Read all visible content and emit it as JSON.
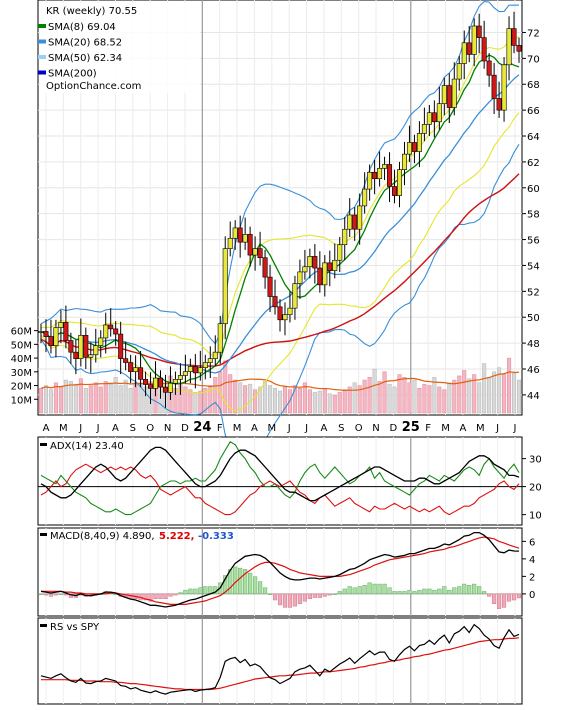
{
  "chart_data": {
    "type": "line",
    "symbol": "KR",
    "interval": "weekly",
    "main_panel": {
      "title": "KR (weekly) 70.55",
      "legend": [
        {
          "label": "SMA(8) 69.04",
          "color": "#008000"
        },
        {
          "label": "SMA(20) 68.52",
          "color": "#3a8fd8"
        },
        {
          "label": "SMA(50) 62.34",
          "color": "#9dd0f0"
        },
        {
          "label": "SMA(200)",
          "color": "#0000c8"
        }
      ],
      "watermark": "OptionChance.com",
      "price_ticks": [
        44,
        46,
        48,
        50,
        52,
        54,
        56,
        58,
        60,
        62,
        64,
        66,
        68,
        70,
        72
      ],
      "price_range": [
        42.6,
        74.2
      ],
      "volume_ticks": [
        "60M",
        "50M",
        "40M",
        "30M",
        "20M",
        "10M"
      ],
      "volume_tick_values": [
        60,
        50,
        40,
        30,
        20,
        10
      ],
      "volume_range": [
        0,
        67
      ],
      "x_labels": [
        "A",
        "M",
        "J",
        "J",
        "A",
        "S",
        "O",
        "N",
        "D",
        "24",
        "F",
        "M",
        "A",
        "M",
        "J",
        "J",
        "A",
        "S",
        "O",
        "N",
        "D",
        "25",
        "F",
        "M",
        "A",
        "M",
        "J",
        "J"
      ],
      "close": [
        48.9,
        48.5,
        47.8,
        49.2,
        49.6,
        48.2,
        47.3,
        46.8,
        48.6,
        46.9,
        47.1,
        47.8,
        48.4,
        49.4,
        49.1,
        48.7,
        46.8,
        46.5,
        45.8,
        46.1,
        45.2,
        44.8,
        44.5,
        45.3,
        44.6,
        44.2,
        44.9,
        45.2,
        45.5,
        45.8,
        46.2,
        45.7,
        46.1,
        46.5,
        46.8,
        47.3,
        49.5,
        55.3,
        56.1,
        56.9,
        55.8,
        56.4,
        54.8,
        55.3,
        54.6,
        53.1,
        51.6,
        50.8,
        49.8,
        50.2,
        50.7,
        52.6,
        53.5,
        53.9,
        54.7,
        53.8,
        52.5,
        54.2,
        53.6,
        54.4,
        55.6,
        56.8,
        57.9,
        56.8,
        58.6,
        59.9,
        61.2,
        60.7,
        61.5,
        61.8,
        60.1,
        59.4,
        61.4,
        62.6,
        63.5,
        62.8,
        64.2,
        64.9,
        65.8,
        65.1,
        66.5,
        67.9,
        66.2,
        68.4,
        69.6,
        71.2,
        70.3,
        72.5,
        71.6,
        69.8,
        68.7,
        66.9,
        66.0,
        69.5,
        72.3,
        71.0,
        70.55
      ],
      "sma8_last": 69.04,
      "sma20_last": 68.52,
      "sma50_last": 62.34,
      "volume_m": [
        18,
        20,
        17,
        22,
        19,
        24,
        23,
        21,
        25,
        18,
        20,
        22,
        19,
        23,
        21,
        26,
        20,
        24,
        18,
        22,
        21,
        19,
        23,
        20,
        25,
        22,
        27,
        18,
        21,
        19,
        17,
        15,
        16,
        18,
        20,
        26,
        30,
        38,
        28,
        24,
        22,
        20,
        21,
        17,
        19,
        23,
        20,
        18,
        16,
        19,
        17,
        20,
        18,
        22,
        17,
        15,
        16,
        18,
        14,
        13,
        15,
        17,
        19,
        22,
        20,
        24,
        26,
        32,
        23,
        30,
        21,
        19,
        28,
        26,
        22,
        24,
        18,
        21,
        20,
        26,
        19,
        17,
        22,
        24,
        27,
        31,
        25,
        28,
        22,
        36,
        26,
        30,
        33,
        28,
        40,
        29,
        24
      ],
      "volume_colors_up": [
        1,
        0,
        0,
        1,
        1,
        0,
        0,
        0,
        1,
        0,
        1,
        1,
        1,
        1,
        0,
        0,
        0,
        0,
        0,
        1,
        0,
        0,
        0,
        1,
        0,
        0,
        1,
        1,
        1,
        1,
        1,
        0,
        1,
        1,
        1,
        1,
        1,
        1,
        1,
        1,
        0,
        1,
        0,
        1,
        0,
        0,
        0,
        0,
        0,
        1,
        1,
        1,
        1,
        1,
        1,
        0,
        0,
        1,
        0,
        1,
        1,
        1,
        1,
        0,
        1,
        1,
        1,
        0,
        1,
        1,
        0,
        0,
        1,
        1,
        1,
        0,
        1,
        1,
        1,
        0,
        1,
        1,
        0,
        1,
        1,
        1,
        0,
        1,
        0,
        0,
        0,
        0,
        0,
        1,
        1,
        0,
        0
      ]
    },
    "adx_panel": {
      "title": "ADX(14) 23.40",
      "ticks": [
        10,
        20,
        30
      ],
      "range": [
        7,
        37
      ],
      "reference_level": 20,
      "adx": [
        21,
        20,
        18,
        17,
        16,
        16,
        17,
        19,
        21,
        23,
        25,
        27,
        28,
        27,
        25,
        23,
        22,
        23,
        25,
        27,
        29,
        31,
        33,
        34,
        34,
        33,
        31,
        29,
        27,
        25,
        23,
        21,
        20,
        20,
        21,
        22,
        24,
        27,
        30,
        32,
        33,
        33,
        32,
        31,
        29,
        27,
        25,
        23,
        21,
        19,
        18,
        18,
        17,
        16,
        15,
        15,
        16,
        17,
        18,
        19,
        20,
        21,
        22,
        23,
        24,
        25,
        26,
        27,
        27,
        26,
        25,
        24,
        23,
        22,
        22,
        22,
        23,
        23,
        22,
        21,
        21,
        22,
        23,
        24,
        25,
        27,
        29,
        30,
        31,
        31,
        30,
        28,
        27,
        26,
        24,
        24,
        23.4
      ],
      "plus_di": [
        24,
        23,
        22,
        21,
        24,
        22,
        20,
        18,
        17,
        16,
        14,
        13,
        12,
        11,
        11,
        12,
        11,
        10,
        10,
        11,
        12,
        13,
        14,
        17,
        20,
        21,
        22,
        22,
        21,
        22,
        22,
        23,
        22,
        22,
        24,
        26,
        30,
        33,
        36,
        35,
        32,
        30,
        27,
        25,
        22,
        20,
        20,
        21,
        19,
        17,
        16,
        18,
        22,
        25,
        27,
        28,
        25,
        23,
        25,
        27,
        25,
        23,
        21,
        22,
        24,
        25,
        27,
        23,
        25,
        22,
        21,
        20,
        19,
        18,
        17,
        19,
        21,
        22,
        24,
        23,
        22,
        24,
        23,
        22,
        24,
        26,
        27,
        26,
        24,
        28,
        30,
        27,
        25,
        23,
        26,
        28,
        25
      ],
      "minus_di": [
        17,
        18,
        20,
        22,
        20,
        21,
        24,
        26,
        27,
        28,
        27,
        26,
        25,
        26,
        27,
        26,
        27,
        26,
        27,
        26,
        24,
        23,
        24,
        22,
        19,
        18,
        17,
        18,
        19,
        20,
        18,
        16,
        16,
        14,
        13,
        12,
        11,
        10,
        10,
        11,
        13,
        15,
        17,
        18,
        20,
        21,
        22,
        21,
        20,
        21,
        22,
        20,
        18,
        17,
        15,
        14,
        16,
        17,
        15,
        13,
        14,
        15,
        16,
        14,
        13,
        12,
        11,
        13,
        12,
        12,
        13,
        14,
        13,
        12,
        13,
        12,
        11,
        12,
        11,
        12,
        13,
        11,
        10,
        11,
        12,
        13,
        13,
        14,
        16,
        17,
        18,
        19,
        21,
        22,
        20,
        19,
        21
      ]
    },
    "macd_panel": {
      "title": "MACD(8,40,9) 4.890,",
      "signal_label": "5.222,",
      "hist_label": "-0.333",
      "ticks": [
        0,
        2,
        4,
        6
      ],
      "range": [
        -2.3,
        7.3
      ],
      "macd": [
        0.3,
        0.2,
        0.1,
        0.2,
        0.3,
        0.1,
        -0.1,
        -0.2,
        0,
        -0.2,
        -0.2,
        -0.1,
        0,
        0.2,
        0.2,
        0.1,
        -0.2,
        -0.4,
        -0.6,
        -0.7,
        -0.9,
        -1.1,
        -1.3,
        -1.3,
        -1.4,
        -1.5,
        -1.4,
        -1.3,
        -1.1,
        -0.9,
        -0.7,
        -0.6,
        -0.4,
        -0.2,
        0,
        0.2,
        0.7,
        1.7,
        2.7,
        3.5,
        3.9,
        4.3,
        4.4,
        4.5,
        4.4,
        4.1,
        3.6,
        3.0,
        2.4,
        2.0,
        1.7,
        1.6,
        1.6,
        1.7,
        1.8,
        1.8,
        1.7,
        1.8,
        1.9,
        2.0,
        2.2,
        2.5,
        2.8,
        2.9,
        3.2,
        3.5,
        3.9,
        4.1,
        4.3,
        4.5,
        4.4,
        4.2,
        4.3,
        4.4,
        4.6,
        4.6,
        4.8,
        5.0,
        5.2,
        5.2,
        5.4,
        5.7,
        5.6,
        5.9,
        6.2,
        6.6,
        6.7,
        7.0,
        7.0,
        6.7,
        6.2,
        5.5,
        4.8,
        4.7,
        5.0,
        4.9,
        4.89
      ],
      "signal": [
        0.3,
        0.3,
        0.3,
        0.3,
        0.3,
        0.2,
        0.2,
        0.1,
        0.1,
        0,
        0,
        0,
        0,
        0,
        0.1,
        0.1,
        0,
        -0.1,
        -0.2,
        -0.3,
        -0.4,
        -0.6,
        -0.7,
        -0.9,
        -1.0,
        -1.1,
        -1.2,
        -1.2,
        -1.2,
        -1.2,
        -1.1,
        -1.0,
        -0.9,
        -0.8,
        -0.6,
        -0.4,
        -0.2,
        0.2,
        0.7,
        1.3,
        1.8,
        2.3,
        2.7,
        3.1,
        3.4,
        3.6,
        3.6,
        3.5,
        3.3,
        3.1,
        2.8,
        2.6,
        2.4,
        2.3,
        2.2,
        2.1,
        2.0,
        2.0,
        2.0,
        2.0,
        2.0,
        2.1,
        2.2,
        2.4,
        2.6,
        2.8,
        3.0,
        3.3,
        3.5,
        3.7,
        3.9,
        4.0,
        4.1,
        4.2,
        4.3,
        4.4,
        4.5,
        4.6,
        4.8,
        4.9,
        5.0,
        5.1,
        5.3,
        5.4,
        5.6,
        5.8,
        6.0,
        6.2,
        6.4,
        6.5,
        6.4,
        6.3,
        6.0,
        5.8,
        5.6,
        5.4,
        5.22
      ]
    },
    "rs_panel": {
      "title": "RS vs SPY",
      "rs": [
        0.3,
        0.28,
        0.26,
        0.3,
        0.33,
        0.27,
        0.22,
        0.2,
        0.26,
        0.19,
        0.18,
        0.21,
        0.22,
        0.26,
        0.24,
        0.22,
        0.15,
        0.14,
        0.1,
        0.12,
        0.08,
        0.06,
        0.04,
        0.07,
        0.04,
        0.02,
        0.05,
        0.06,
        0.07,
        0.08,
        0.09,
        0.06,
        0.08,
        0.09,
        0.1,
        0.12,
        0.28,
        0.52,
        0.56,
        0.58,
        0.5,
        0.55,
        0.45,
        0.48,
        0.44,
        0.35,
        0.27,
        0.24,
        0.18,
        0.22,
        0.26,
        0.36,
        0.4,
        0.42,
        0.46,
        0.38,
        0.3,
        0.4,
        0.36,
        0.42,
        0.48,
        0.52,
        0.57,
        0.49,
        0.56,
        0.62,
        0.68,
        0.62,
        0.66,
        0.66,
        0.55,
        0.52,
        0.62,
        0.7,
        0.75,
        0.68,
        0.76,
        0.78,
        0.84,
        0.78,
        0.86,
        0.92,
        0.8,
        0.94,
        0.98,
        1.05,
        0.96,
        1.08,
        1.02,
        0.92,
        0.86,
        0.76,
        0.72,
        0.88,
        1.0,
        0.9,
        0.93
      ],
      "rs_avg": [
        0.24,
        0.24,
        0.24,
        0.24,
        0.24,
        0.24,
        0.23,
        0.23,
        0.23,
        0.22,
        0.22,
        0.22,
        0.21,
        0.21,
        0.21,
        0.2,
        0.2,
        0.19,
        0.18,
        0.18,
        0.17,
        0.16,
        0.15,
        0.14,
        0.13,
        0.12,
        0.11,
        0.1,
        0.1,
        0.09,
        0.09,
        0.09,
        0.09,
        0.09,
        0.09,
        0.1,
        0.11,
        0.13,
        0.15,
        0.17,
        0.19,
        0.21,
        0.23,
        0.25,
        0.26,
        0.27,
        0.28,
        0.29,
        0.3,
        0.3,
        0.31,
        0.31,
        0.32,
        0.33,
        0.34,
        0.34,
        0.35,
        0.36,
        0.36,
        0.37,
        0.38,
        0.39,
        0.4,
        0.41,
        0.43,
        0.44,
        0.46,
        0.47,
        0.49,
        0.5,
        0.52,
        0.53,
        0.54,
        0.56,
        0.57,
        0.59,
        0.6,
        0.62,
        0.63,
        0.65,
        0.67,
        0.69,
        0.7,
        0.72,
        0.74,
        0.76,
        0.78,
        0.8,
        0.82,
        0.83,
        0.84,
        0.85,
        0.85,
        0.86,
        0.87,
        0.87,
        0.88
      ],
      "range": [
        -0.1,
        1.15
      ]
    }
  }
}
